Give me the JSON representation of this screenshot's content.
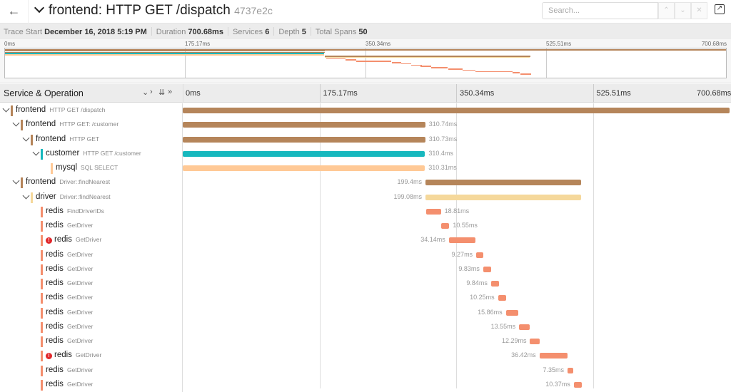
{
  "header": {
    "back_icon": "arrow-left-icon",
    "title": "frontend: HTTP GET /dispatch",
    "trace_id": "4737e2c",
    "search_placeholder": "Search...",
    "external_icon": "external-link-icon"
  },
  "trace_info": [
    {
      "label": "Trace Start",
      "value": "December 16, 2018 5:19 PM"
    },
    {
      "label": "Duration",
      "value": "700.68ms"
    },
    {
      "label": "Services",
      "value": "6"
    },
    {
      "label": "Depth",
      "value": "5"
    },
    {
      "label": "Total Spans",
      "value": "50"
    }
  ],
  "ticks": [
    "0ms",
    "175.17ms",
    "350.34ms",
    "525.51ms",
    "700.68ms"
  ],
  "column_header": {
    "label": "Service & Operation"
  },
  "trace_duration_ms": 700.68,
  "colors": {
    "frontend": "#b5855a",
    "customer": "#17b8be",
    "mysql": "#ffc996",
    "driver": "#f5d89b",
    "redis": "#f48f6e",
    "error": "#e0262a"
  },
  "spans": [
    {
      "service": "frontend",
      "operation": "HTTP GET /dispatch",
      "depth": 0,
      "expandable": true,
      "start_ms": 0,
      "duration": "700.68ms",
      "duration_ms": 700.68,
      "error": false
    },
    {
      "service": "frontend",
      "operation": "HTTP GET: /customer",
      "depth": 1,
      "expandable": true,
      "start_ms": 0,
      "duration": "310.74ms",
      "duration_ms": 310.74,
      "error": false
    },
    {
      "service": "frontend",
      "operation": "HTTP GET",
      "depth": 2,
      "expandable": true,
      "start_ms": 0,
      "duration": "310.73ms",
      "duration_ms": 310.73,
      "error": false
    },
    {
      "service": "customer",
      "operation": "HTTP GET /customer",
      "depth": 3,
      "expandable": true,
      "start_ms": 0,
      "duration": "310.4ms",
      "duration_ms": 310.4,
      "error": false
    },
    {
      "service": "mysql",
      "operation": "SQL SELECT",
      "depth": 4,
      "expandable": false,
      "start_ms": 0,
      "duration": "310.31ms",
      "duration_ms": 310.31,
      "error": false
    },
    {
      "service": "frontend",
      "operation": "Driver::findNearest",
      "depth": 1,
      "expandable": true,
      "start_ms": 311,
      "duration": "199.4ms",
      "duration_ms": 199.4,
      "error": false
    },
    {
      "service": "driver",
      "operation": "Driver::findNearest",
      "depth": 2,
      "expandable": true,
      "start_ms": 311,
      "duration": "199.08ms",
      "duration_ms": 199.08,
      "error": false
    },
    {
      "service": "redis",
      "operation": "FindDriverIDs",
      "depth": 3,
      "expandable": false,
      "start_ms": 312,
      "duration": "18.81ms",
      "duration_ms": 18.81,
      "error": false
    },
    {
      "service": "redis",
      "operation": "GetDriver",
      "depth": 3,
      "expandable": false,
      "start_ms": 331,
      "duration": "10.55ms",
      "duration_ms": 10.55,
      "error": false
    },
    {
      "service": "redis",
      "operation": "GetDriver",
      "depth": 3,
      "expandable": false,
      "start_ms": 341,
      "duration": "34.14ms",
      "duration_ms": 34.14,
      "error": true
    },
    {
      "service": "redis",
      "operation": "GetDriver",
      "depth": 3,
      "expandable": false,
      "start_ms": 376,
      "duration": "9.27ms",
      "duration_ms": 9.27,
      "error": false
    },
    {
      "service": "redis",
      "operation": "GetDriver",
      "depth": 3,
      "expandable": false,
      "start_ms": 385,
      "duration": "9.83ms",
      "duration_ms": 9.83,
      "error": false
    },
    {
      "service": "redis",
      "operation": "GetDriver",
      "depth": 3,
      "expandable": false,
      "start_ms": 395,
      "duration": "9.84ms",
      "duration_ms": 9.84,
      "error": false
    },
    {
      "service": "redis",
      "operation": "GetDriver",
      "depth": 3,
      "expandable": false,
      "start_ms": 404,
      "duration": "10.25ms",
      "duration_ms": 10.25,
      "error": false
    },
    {
      "service": "redis",
      "operation": "GetDriver",
      "depth": 3,
      "expandable": false,
      "start_ms": 414,
      "duration": "15.86ms",
      "duration_ms": 15.86,
      "error": false
    },
    {
      "service": "redis",
      "operation": "GetDriver",
      "depth": 3,
      "expandable": false,
      "start_ms": 431,
      "duration": "13.55ms",
      "duration_ms": 13.55,
      "error": false
    },
    {
      "service": "redis",
      "operation": "GetDriver",
      "depth": 3,
      "expandable": false,
      "start_ms": 445,
      "duration": "12.29ms",
      "duration_ms": 12.29,
      "error": false
    },
    {
      "service": "redis",
      "operation": "GetDriver",
      "depth": 3,
      "expandable": false,
      "start_ms": 457,
      "duration": "36.42ms",
      "duration_ms": 36.42,
      "error": true
    },
    {
      "service": "redis",
      "operation": "GetDriver",
      "depth": 3,
      "expandable": false,
      "start_ms": 493,
      "duration": "7.35ms",
      "duration_ms": 7.35,
      "error": false
    },
    {
      "service": "redis",
      "operation": "GetDriver",
      "depth": 3,
      "expandable": false,
      "start_ms": 501,
      "duration": "10.37ms",
      "duration_ms": 10.37,
      "error": false
    }
  ]
}
